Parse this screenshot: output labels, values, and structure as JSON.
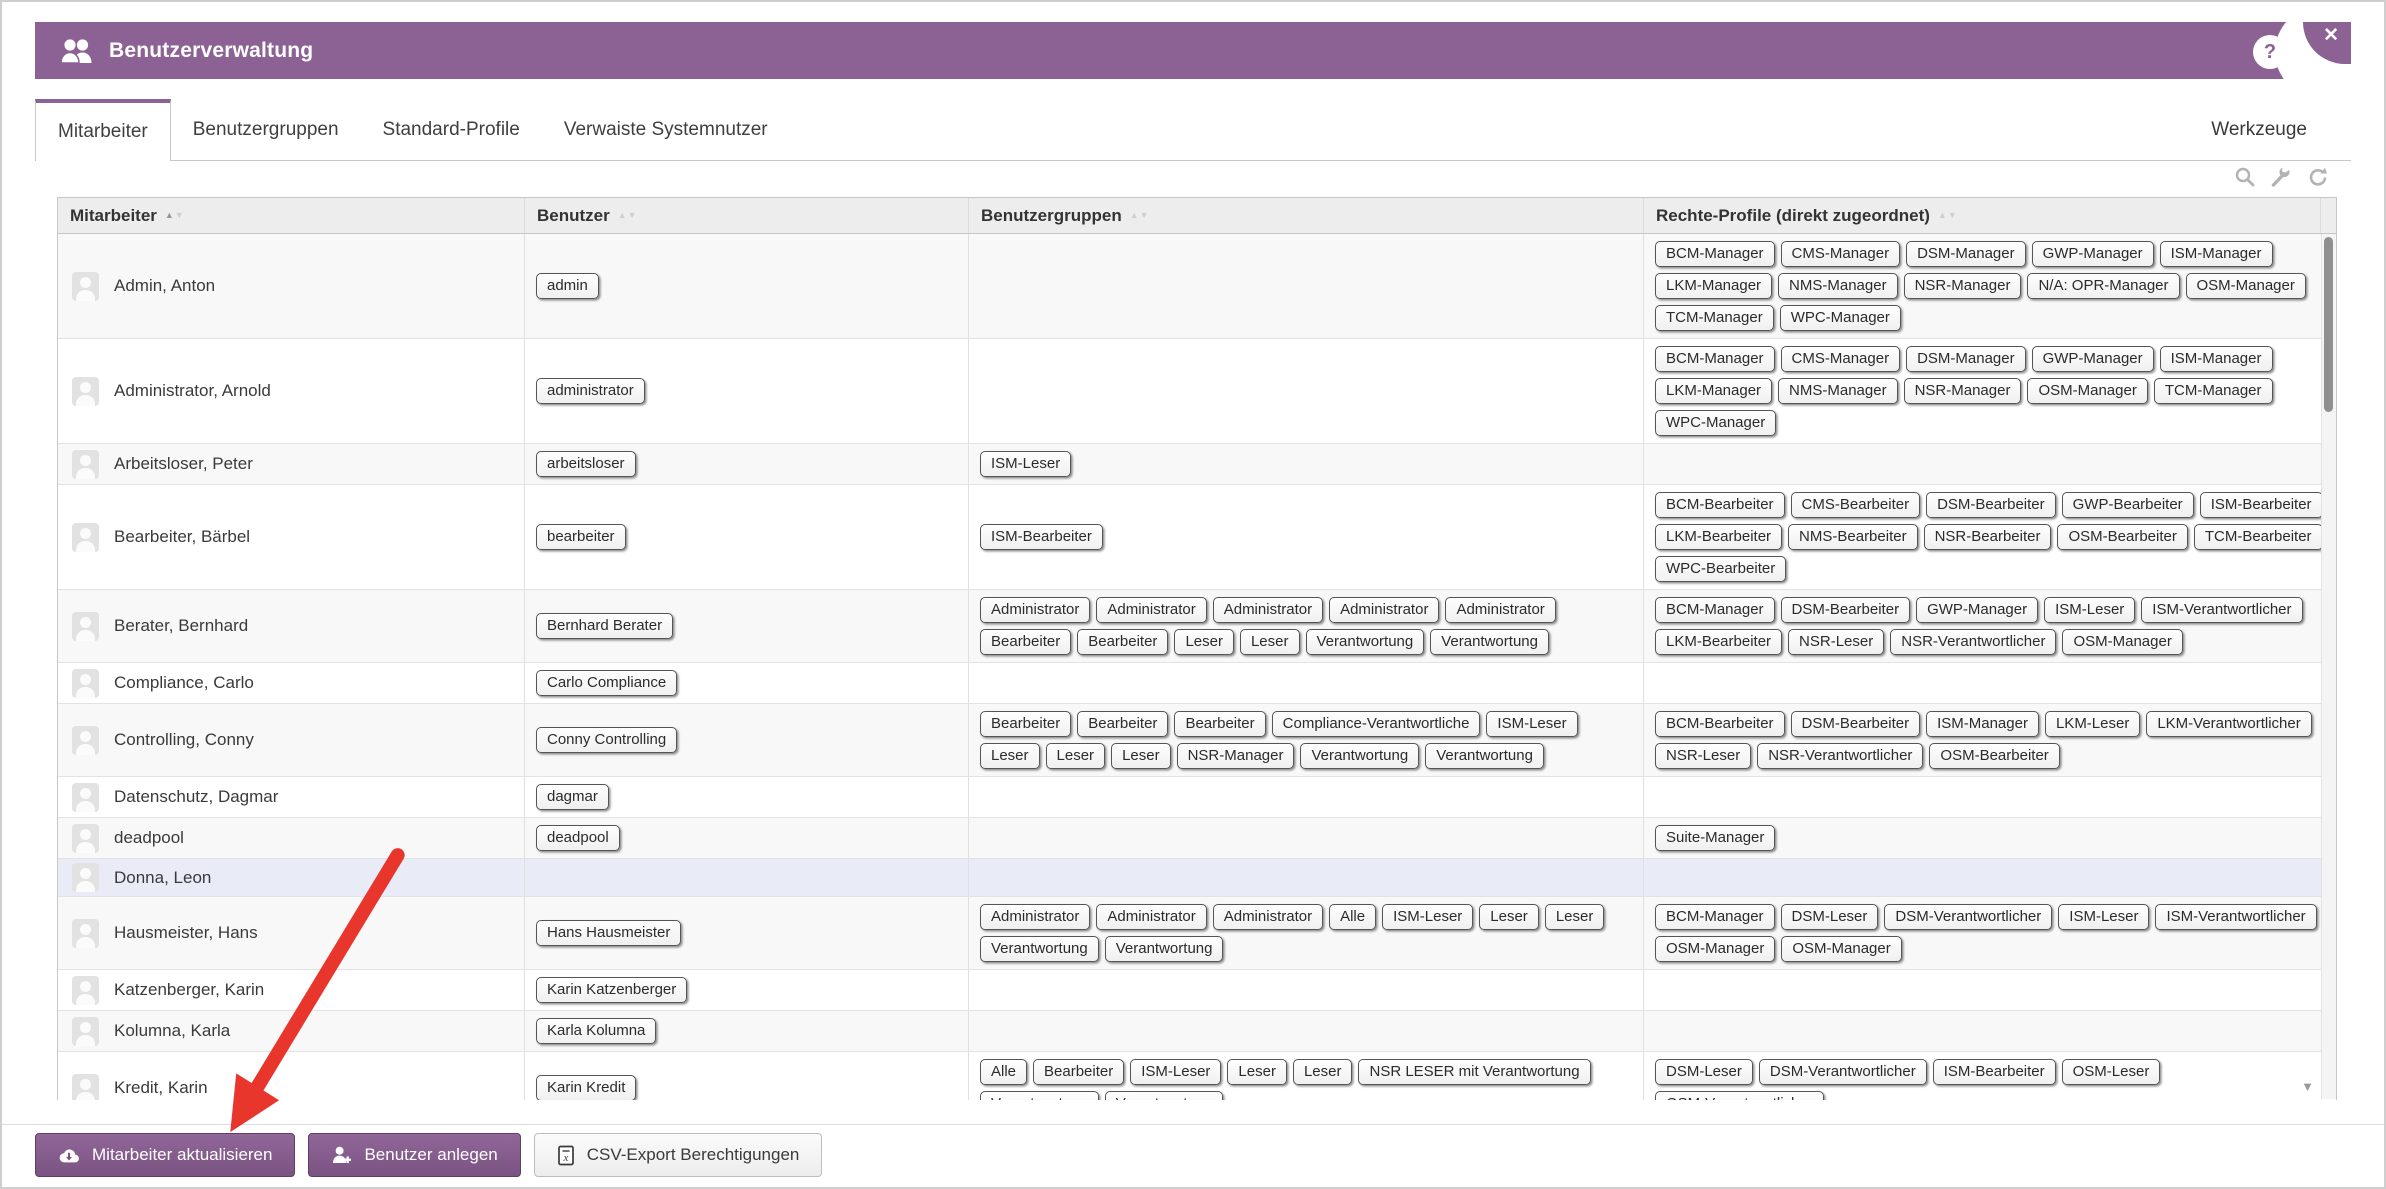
{
  "window": {
    "title": "Benutzerverwaltung",
    "help_label": "?",
    "close_label": "✕"
  },
  "tabs": [
    {
      "label": "Mitarbeiter",
      "active": true
    },
    {
      "label": "Benutzergruppen",
      "active": false
    },
    {
      "label": "Standard-Profile",
      "active": false
    },
    {
      "label": "Verwaiste Systemnutzer",
      "active": false
    }
  ],
  "tools_link": "Werkzeuge",
  "toolbar_icons": [
    "search-icon",
    "wrench-icon",
    "refresh-icon"
  ],
  "table": {
    "columns": [
      {
        "label": "Mitarbeiter",
        "sorted": "asc"
      },
      {
        "label": "Benutzer",
        "sorted": ""
      },
      {
        "label": "Benutzergruppen",
        "sorted": ""
      },
      {
        "label": "Rechte-Profile (direkt zugeordnet)",
        "sorted": ""
      }
    ],
    "rows": [
      {
        "name": "Admin, Anton",
        "user": "admin",
        "groups": [],
        "profiles": [
          "BCM-Manager",
          "CMS-Manager",
          "DSM-Manager",
          "GWP-Manager",
          "ISM-Manager",
          "LKM-Manager",
          "NMS-Manager",
          "NSR-Manager",
          "N/A: OPR-Manager",
          "OSM-Manager",
          "TCM-Manager",
          "WPC-Manager"
        ],
        "selected": false
      },
      {
        "name": "Administrator, Arnold",
        "user": "administrator",
        "groups": [],
        "profiles": [
          "BCM-Manager",
          "CMS-Manager",
          "DSM-Manager",
          "GWP-Manager",
          "ISM-Manager",
          "LKM-Manager",
          "NMS-Manager",
          "NSR-Manager",
          "OSM-Manager",
          "TCM-Manager",
          "WPC-Manager"
        ],
        "selected": false
      },
      {
        "name": "Arbeitsloser, Peter",
        "user": "arbeitsloser",
        "groups": [
          "ISM-Leser"
        ],
        "profiles": [],
        "selected": false
      },
      {
        "name": "Bearbeiter, Bärbel",
        "user": "bearbeiter",
        "groups": [
          "ISM-Bearbeiter"
        ],
        "profiles": [
          "BCM-Bearbeiter",
          "CMS-Bearbeiter",
          "DSM-Bearbeiter",
          "GWP-Bearbeiter",
          "ISM-Bearbeiter",
          "LKM-Bearbeiter",
          "NMS-Bearbeiter",
          "NSR-Bearbeiter",
          "OSM-Bearbeiter",
          "TCM-Bearbeiter",
          "WPC-Bearbeiter"
        ],
        "selected": false
      },
      {
        "name": "Berater, Bernhard",
        "user": "Bernhard Berater",
        "groups": [
          "Administrator",
          "Administrator",
          "Administrator",
          "Administrator",
          "Administrator",
          "Bearbeiter",
          "Bearbeiter",
          "Leser",
          "Leser",
          "Verantwortung",
          "Verantwortung"
        ],
        "profiles": [
          "BCM-Manager",
          "DSM-Bearbeiter",
          "GWP-Manager",
          "ISM-Leser",
          "ISM-Verantwortlicher",
          "LKM-Bearbeiter",
          "NSR-Leser",
          "NSR-Verantwortlicher",
          "OSM-Manager"
        ],
        "selected": false
      },
      {
        "name": "Compliance, Carlo",
        "user": "Carlo Compliance",
        "groups": [],
        "profiles": [],
        "selected": false
      },
      {
        "name": "Controlling, Conny",
        "user": "Conny Controlling",
        "groups": [
          "Bearbeiter",
          "Bearbeiter",
          "Bearbeiter",
          "Compliance-Verantwortliche",
          "ISM-Leser",
          "Leser",
          "Leser",
          "Leser",
          "NSR-Manager",
          "Verantwortung",
          "Verantwortung"
        ],
        "profiles": [
          "BCM-Bearbeiter",
          "DSM-Bearbeiter",
          "ISM-Manager",
          "LKM-Leser",
          "LKM-Verantwortlicher",
          "NSR-Leser",
          "NSR-Verantwortlicher",
          "OSM-Bearbeiter"
        ],
        "selected": false
      },
      {
        "name": "Datenschutz, Dagmar",
        "user": "dagmar",
        "groups": [],
        "profiles": [],
        "selected": false
      },
      {
        "name": "deadpool",
        "user": "deadpool",
        "groups": [],
        "profiles": [
          "Suite-Manager"
        ],
        "selected": false
      },
      {
        "name": "Donna, Leon",
        "user": "",
        "groups": [],
        "profiles": [],
        "selected": true
      },
      {
        "name": "Hausmeister, Hans",
        "user": "Hans Hausmeister",
        "groups": [
          "Administrator",
          "Administrator",
          "Administrator",
          "Alle",
          "ISM-Leser",
          "Leser",
          "Leser",
          "Verantwortung",
          "Verantwortung"
        ],
        "profiles": [
          "BCM-Manager",
          "DSM-Leser",
          "DSM-Verantwortlicher",
          "ISM-Leser",
          "ISM-Verantwortlicher",
          "OSM-Manager",
          "OSM-Manager"
        ],
        "selected": false
      },
      {
        "name": "Katzenberger, Karin",
        "user": "Karin Katzenberger",
        "groups": [],
        "profiles": [],
        "selected": false
      },
      {
        "name": "Kolumna, Karla",
        "user": "Karla Kolumna",
        "groups": [],
        "profiles": [],
        "selected": false
      },
      {
        "name": "Kredit, Karin",
        "user": "Karin Kredit",
        "groups": [
          "Alle",
          "Bearbeiter",
          "ISM-Leser",
          "Leser",
          "Leser",
          "NSR LESER mit Verantwortung",
          "Verantwortung",
          "Verantwortung"
        ],
        "profiles": [
          "DSM-Leser",
          "DSM-Verantwortlicher",
          "ISM-Bearbeiter",
          "OSM-Leser",
          "OSM-Verantwortlicher"
        ],
        "selected": false
      }
    ]
  },
  "footer": {
    "buttons": [
      {
        "label": "Mitarbeiter aktualisieren",
        "style": "primary",
        "icon": "cloud-download-icon"
      },
      {
        "label": "Benutzer anlegen",
        "style": "primary",
        "icon": "user-plus-icon"
      },
      {
        "label": "CSV-Export Berechtigungen",
        "style": "secondary",
        "icon": "excel-file-icon"
      }
    ]
  },
  "colors": {
    "accent_purple": "#8c6194",
    "arrow_red": "#e8362d",
    "selected_row": "#e9ecf6"
  }
}
